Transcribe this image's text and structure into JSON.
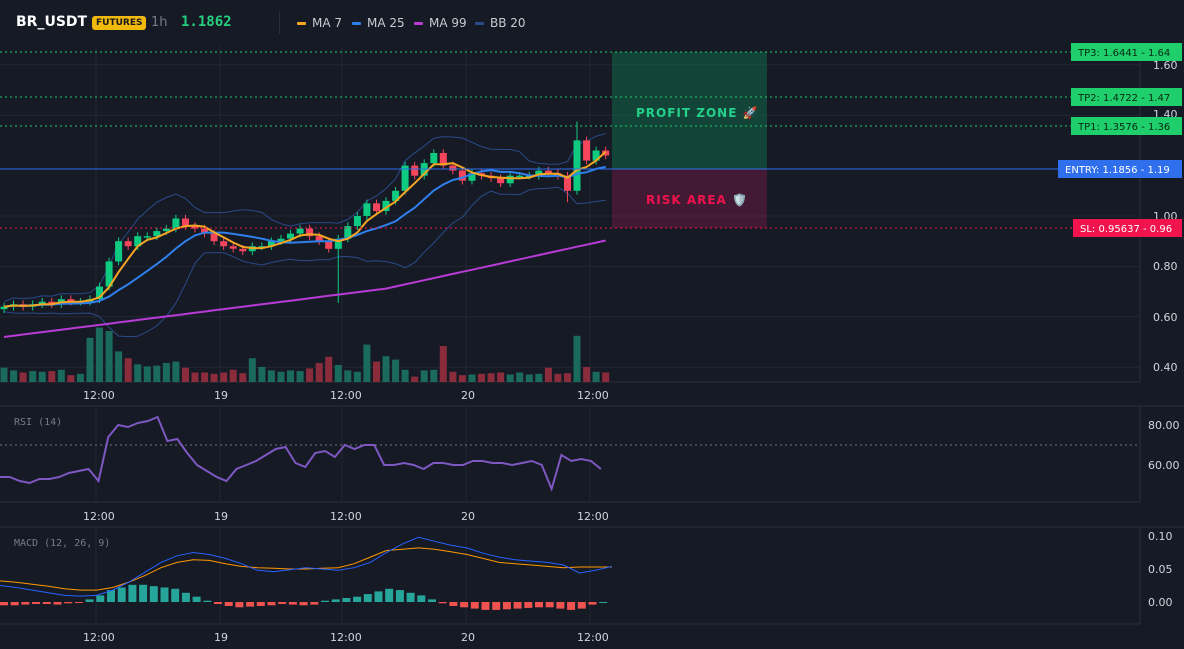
{
  "header": {
    "symbol": "BR_USDT",
    "badge": "FUTURES",
    "timeframe": "1h",
    "price": "1.1862",
    "legend": [
      {
        "label": "MA 7",
        "color": "#f5a623"
      },
      {
        "label": "MA 25",
        "color": "#2f80ed"
      },
      {
        "label": "MA 99",
        "color": "#b83bd6"
      },
      {
        "label": "BB 20",
        "color": "#2a4a8a"
      }
    ]
  },
  "main_chart": {
    "price_axis": [
      "1.60",
      "1.40",
      "1.00",
      "0.80",
      "0.60",
      "0.40"
    ],
    "time_axis": [
      "12:00",
      "19",
      "12:00",
      "20",
      "12:00"
    ],
    "zones": {
      "profit": "PROFIT ZONE 🚀",
      "risk": "RISK AREA 🛡️"
    },
    "levels": [
      {
        "label": "TP3: 1.6441 - 1.64",
        "value": 1.6441,
        "color": "#1fcf6b"
      },
      {
        "label": "TP2: 1.4722 - 1.47",
        "value": 1.4722,
        "color": "#1fcf6b"
      },
      {
        "label": "TP1: 1.3576 - 1.36",
        "value": 1.3576,
        "color": "#1fcf6b"
      },
      {
        "label": "ENTRY: 1.1856 - 1.19",
        "value": 1.1856,
        "color": "#2f6fee"
      },
      {
        "label": "SL: 0.95637 - 0.96",
        "value": 0.95637,
        "color": "#f0134d"
      }
    ]
  },
  "rsi": {
    "title": "RSI (14)",
    "axis": [
      "80.00",
      "60.00"
    ],
    "time_axis": [
      "12:00",
      "19",
      "12:00",
      "20",
      "12:00"
    ]
  },
  "macd": {
    "title": "MACD (12, 26, 9)",
    "axis": [
      "0.10",
      "0.05",
      "0.00"
    ],
    "time_axis": [
      "12:00",
      "19",
      "12:00",
      "20",
      "12:00"
    ]
  },
  "chart_data": {
    "type": "candlestick",
    "timeframe": "1h",
    "candles_close": [
      0.64,
      0.65,
      0.64,
      0.65,
      0.66,
      0.65,
      0.67,
      0.66,
      0.66,
      0.67,
      0.72,
      0.82,
      0.9,
      0.88,
      0.92,
      0.92,
      0.94,
      0.95,
      0.99,
      0.96,
      0.95,
      0.93,
      0.9,
      0.88,
      0.87,
      0.86,
      0.88,
      0.88,
      0.9,
      0.91,
      0.93,
      0.95,
      0.92,
      0.9,
      0.87,
      0.91,
      0.96,
      1.0,
      1.05,
      1.02,
      1.06,
      1.1,
      1.2,
      1.16,
      1.21,
      1.25,
      1.2,
      1.18,
      1.14,
      1.17,
      1.16,
      1.15,
      1.13,
      1.16,
      1.16,
      1.16,
      1.18,
      1.17,
      1.16,
      1.1,
      1.3,
      1.22,
      1.26,
      1.24
    ],
    "volume_axis_max": 1,
    "volume": [
      0.21,
      0.17,
      0.14,
      0.16,
      0.15,
      0.16,
      0.18,
      0.1,
      0.12,
      0.65,
      0.8,
      0.75,
      0.45,
      0.35,
      0.26,
      0.23,
      0.24,
      0.28,
      0.3,
      0.21,
      0.14,
      0.14,
      0.12,
      0.14,
      0.18,
      0.13,
      0.35,
      0.22,
      0.17,
      0.15,
      0.17,
      0.16,
      0.2,
      0.28,
      0.37,
      0.25,
      0.17,
      0.15,
      0.55,
      0.3,
      0.38,
      0.33,
      0.18,
      0.08,
      0.17,
      0.18,
      0.53,
      0.15,
      0.1,
      0.11,
      0.12,
      0.13,
      0.14,
      0.11,
      0.14,
      0.11,
      0.12,
      0.21,
      0.12,
      0.13,
      0.68,
      0.22,
      0.15,
      0.14
    ],
    "rsi": [
      54,
      54,
      52,
      51,
      53,
      53,
      54,
      56,
      57,
      58,
      52,
      74,
      80,
      79,
      81,
      82,
      84,
      72,
      73,
      66,
      60,
      57,
      54,
      52,
      58,
      60,
      62,
      65,
      68,
      69,
      61,
      59,
      66,
      67,
      64,
      70,
      68,
      70,
      70,
      60,
      60,
      61,
      60,
      58,
      61,
      61,
      60,
      60,
      62,
      62,
      61,
      61,
      60,
      61,
      62,
      60,
      48,
      65,
      62,
      63,
      62,
      58
    ],
    "macd_hist": [
      -0.005,
      -0.005,
      -0.004,
      -0.003,
      -0.003,
      -0.004,
      -0.002,
      -0.001,
      0.004,
      0.01,
      0.018,
      0.022,
      0.026,
      0.026,
      0.024,
      0.022,
      0.02,
      0.014,
      0.008,
      0.002,
      -0.003,
      -0.006,
      -0.008,
      -0.007,
      -0.006,
      -0.005,
      -0.003,
      -0.004,
      -0.005,
      -0.004,
      0.002,
      0.004,
      0.006,
      0.008,
      0.012,
      0.016,
      0.02,
      0.018,
      0.014,
      0.01,
      0.004,
      -0.002,
      -0.006,
      -0.008,
      -0.01,
      -0.012,
      -0.012,
      -0.011,
      -0.01,
      -0.009,
      -0.008,
      -0.008,
      -0.01,
      -0.012,
      -0.01,
      -0.004,
      0.0
    ],
    "macd_line": [
      0.025,
      0.022,
      0.018,
      0.014,
      0.01,
      0.009,
      0.01,
      0.018,
      0.03,
      0.045,
      0.06,
      0.07,
      0.075,
      0.072,
      0.066,
      0.058,
      0.048,
      0.046,
      0.049,
      0.052,
      0.05,
      0.048,
      0.052,
      0.06,
      0.075,
      0.088,
      0.098,
      0.092,
      0.086,
      0.082,
      0.074,
      0.068,
      0.064,
      0.062,
      0.06,
      0.056,
      0.044,
      0.048,
      0.054
    ],
    "macd_signal": [
      0.032,
      0.03,
      0.027,
      0.024,
      0.02,
      0.018,
      0.018,
      0.022,
      0.03,
      0.04,
      0.052,
      0.06,
      0.064,
      0.063,
      0.058,
      0.054,
      0.052,
      0.051,
      0.05,
      0.05,
      0.051,
      0.052,
      0.058,
      0.068,
      0.078,
      0.08,
      0.082,
      0.08,
      0.076,
      0.072,
      0.066,
      0.06,
      0.058,
      0.056,
      0.054,
      0.052,
      0.053,
      0.053,
      0.053
    ]
  }
}
